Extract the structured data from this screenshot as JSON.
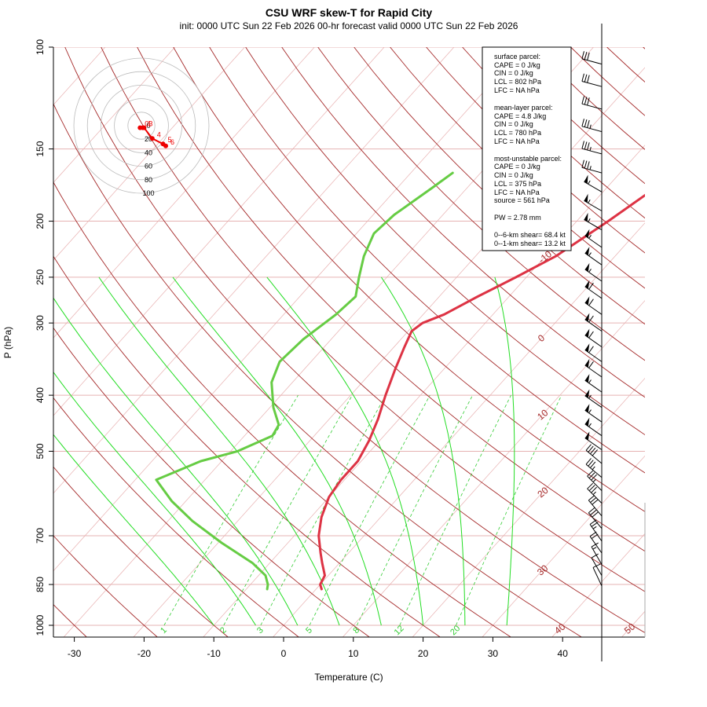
{
  "title": "CSU WRF skew-T for Rapid City",
  "subtitle": "init: 0000 UTC Sun 22 Feb 2026     00-hr forecast valid 0000 UTC Sun 22 Feb 2026",
  "chart_data": {
    "type": "skew-t",
    "xlabel": "Temperature (C)",
    "ylabel": "P (hPa)",
    "x_ticks": [
      -30,
      -20,
      -10,
      0,
      10,
      20,
      30,
      40
    ],
    "y_ticks": [
      100,
      150,
      200,
      250,
      300,
      400,
      500,
      700,
      850,
      1000
    ],
    "y_scale": "log",
    "temperature_profile": {
      "name": "temperature",
      "color": "#dd3344",
      "points": [
        [
          866,
          0.8
        ],
        [
          850,
          0.0
        ],
        [
          820,
          -0.5
        ],
        [
          780,
          -2.5
        ],
        [
          750,
          -4.0
        ],
        [
          700,
          -6.5
        ],
        [
          650,
          -8.5
        ],
        [
          600,
          -10.0
        ],
        [
          560,
          -10.5
        ],
        [
          520,
          -10.5
        ],
        [
          480,
          -11.5
        ],
        [
          440,
          -13.0
        ],
        [
          400,
          -15.0
        ],
        [
          360,
          -17.0
        ],
        [
          330,
          -18.5
        ],
        [
          310,
          -19.5
        ],
        [
          300,
          -19.0
        ],
        [
          290,
          -17.0
        ],
        [
          270,
          -14.5
        ],
        [
          250,
          -11.5
        ],
        [
          230,
          -8.5
        ],
        [
          200,
          -5.5
        ],
        [
          175,
          -3.0
        ],
        [
          150,
          -0.5
        ],
        [
          130,
          1.5
        ],
        [
          112,
          3.0
        ]
      ]
    },
    "dewpoint_profile": {
      "name": "dewpoint",
      "color": "#66cc44",
      "points": [
        [
          866,
          -7.0
        ],
        [
          850,
          -7.5
        ],
        [
          820,
          -9.0
        ],
        [
          780,
          -12.5
        ],
        [
          720,
          -19.5
        ],
        [
          660,
          -26.5
        ],
        [
          610,
          -32.0
        ],
        [
          560,
          -37.0
        ],
        [
          540,
          -35.0
        ],
        [
          520,
          -33.0
        ],
        [
          500,
          -29.0
        ],
        [
          470,
          -26.0
        ],
        [
          450,
          -26.5
        ],
        [
          420,
          -29.5
        ],
        [
          380,
          -33.0
        ],
        [
          350,
          -34.5
        ],
        [
          320,
          -34.0
        ],
        [
          290,
          -32.5
        ],
        [
          270,
          -32.0
        ],
        [
          250,
          -34.0
        ],
        [
          230,
          -36.0
        ],
        [
          210,
          -37.5
        ],
        [
          195,
          -37.0
        ],
        [
          175,
          -35.0
        ],
        [
          165,
          -34.0
        ]
      ]
    },
    "isotherm_labels": [
      "-10",
      "0",
      "10",
      "20",
      "30",
      "40",
      "50"
    ],
    "mixing_ratio_labels": [
      "1",
      "2",
      "3",
      "5",
      "8",
      "12",
      "20"
    ],
    "hodograph": {
      "ring_labels": [
        "0",
        "20",
        "40",
        "60",
        "80",
        "100"
      ],
      "point_labels": [
        "0",
        "1",
        "3",
        "4",
        "5",
        "6"
      ],
      "points_kt": [
        [
          -2,
          -3
        ],
        [
          2,
          -3
        ],
        [
          4,
          -3
        ],
        [
          16,
          -19
        ],
        [
          32,
          -27
        ],
        [
          36,
          -30
        ]
      ]
    },
    "wind_barbs": [
      {
        "p": 107,
        "dir": 285,
        "kt": 30
      },
      {
        "p": 117,
        "dir": 285,
        "kt": 30
      },
      {
        "p": 128,
        "dir": 285,
        "kt": 30
      },
      {
        "p": 140,
        "dir": 285,
        "kt": 35
      },
      {
        "p": 153,
        "dir": 285,
        "kt": 35
      },
      {
        "p": 165,
        "dir": 285,
        "kt": 35
      },
      {
        "p": 178,
        "dir": 300,
        "kt": 55
      },
      {
        "p": 192,
        "dir": 300,
        "kt": 55
      },
      {
        "p": 207,
        "dir": 300,
        "kt": 55
      },
      {
        "p": 222,
        "dir": 305,
        "kt": 55
      },
      {
        "p": 238,
        "dir": 305,
        "kt": 55
      },
      {
        "p": 254,
        "dir": 305,
        "kt": 55
      },
      {
        "p": 272,
        "dir": 305,
        "kt": 60
      },
      {
        "p": 290,
        "dir": 305,
        "kt": 60
      },
      {
        "p": 310,
        "dir": 305,
        "kt": 60
      },
      {
        "p": 330,
        "dir": 305,
        "kt": 60
      },
      {
        "p": 350,
        "dir": 305,
        "kt": 60
      },
      {
        "p": 372,
        "dir": 305,
        "kt": 60
      },
      {
        "p": 395,
        "dir": 305,
        "kt": 55
      },
      {
        "p": 420,
        "dir": 305,
        "kt": 55
      },
      {
        "p": 445,
        "dir": 305,
        "kt": 55
      },
      {
        "p": 470,
        "dir": 305,
        "kt": 55
      },
      {
        "p": 497,
        "dir": 305,
        "kt": 50
      },
      {
        "p": 525,
        "dir": 310,
        "kt": 40
      },
      {
        "p": 555,
        "dir": 310,
        "kt": 35
      },
      {
        "p": 585,
        "dir": 315,
        "kt": 35
      },
      {
        "p": 615,
        "dir": 315,
        "kt": 35
      },
      {
        "p": 647,
        "dir": 320,
        "kt": 30
      },
      {
        "p": 680,
        "dir": 320,
        "kt": 30
      },
      {
        "p": 715,
        "dir": 325,
        "kt": 25
      },
      {
        "p": 750,
        "dir": 325,
        "kt": 20
      },
      {
        "p": 785,
        "dir": 330,
        "kt": 15
      },
      {
        "p": 820,
        "dir": 330,
        "kt": 10
      },
      {
        "p": 855,
        "dir": 335,
        "kt": 10
      }
    ]
  },
  "stats": {
    "surface": {
      "header": "surface parcel:",
      "cape": "CAPE = 0 J/kg",
      "cin": "CIN = 0 J/kg",
      "lcl": "LCL = 802 hPa",
      "lfc": "LFC = NA hPa"
    },
    "meanlayer": {
      "header": "mean-layer parcel:",
      "cape": "CAPE = 4.8 J/kg",
      "cin": "CIN = 0 J/kg",
      "lcl": "LCL = 780 hPa",
      "lfc": "LFC = NA hPa"
    },
    "mostunstable": {
      "header": "most-unstable parcel:",
      "cape": "CAPE = 0 J/kg",
      "cin": "CIN = 0 J/kg",
      "lcl": "LCL = 375 hPa",
      "lfc": "LFC = NA hPa",
      "source": "source = 561 hPa"
    },
    "pw": "PW =  2.78 mm",
    "shear6": "0--6-km shear= 68.4 kt",
    "shear1": "0--1-km shear= 13.2 kt"
  }
}
